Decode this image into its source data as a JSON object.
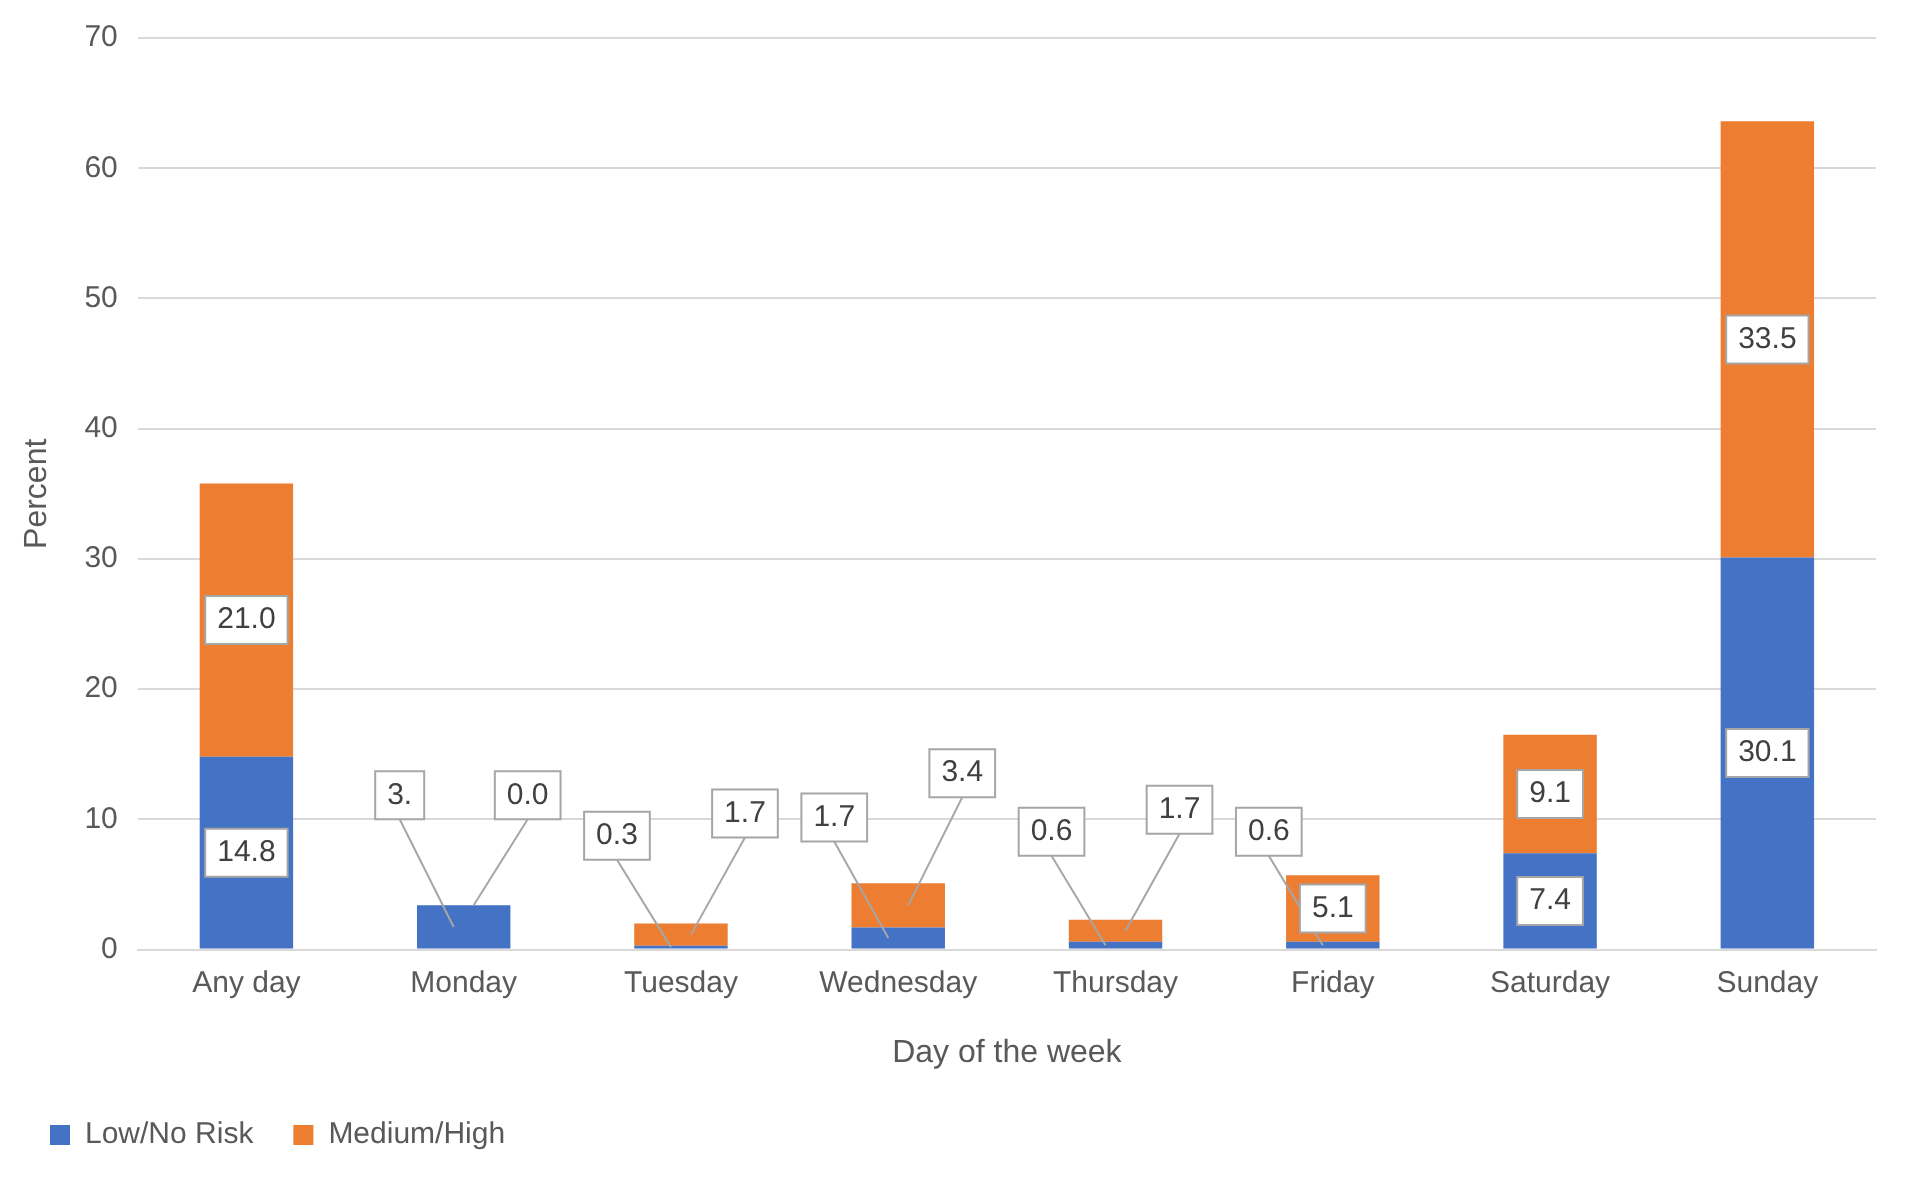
{
  "chart_data": {
    "type": "bar",
    "stacked": true,
    "xlabel": "Day of the week",
    "ylabel": "Percent",
    "categories": [
      "Any day",
      "Monday",
      "Tuesday",
      "Wednesday",
      "Thursday",
      "Friday",
      "Saturday",
      "Sunday"
    ],
    "series": [
      {
        "name": "Low/No Risk",
        "color": "#4472c4",
        "values": [
          14.8,
          3.4,
          0.3,
          1.7,
          0.6,
          0.6,
          7.4,
          30.1
        ],
        "value_labels": [
          "14.8",
          "3.",
          "0.3",
          "1.7",
          "0.6",
          "0.6",
          "7.4",
          "30.1"
        ]
      },
      {
        "name": "Medium/High",
        "color": "#ed7d31",
        "values": [
          21.0,
          0.0,
          1.7,
          3.4,
          1.7,
          5.1,
          9.1,
          33.5
        ],
        "value_labels": [
          "21.0",
          "0.0",
          "1.7",
          "3.4",
          "1.7",
          "5.1",
          "9.1",
          "33.5"
        ]
      }
    ],
    "ylim": [
      0,
      70
    ],
    "yticks": [
      0,
      10,
      20,
      30,
      40,
      50,
      60,
      70
    ],
    "grid": "y",
    "legend": "bottom left"
  }
}
